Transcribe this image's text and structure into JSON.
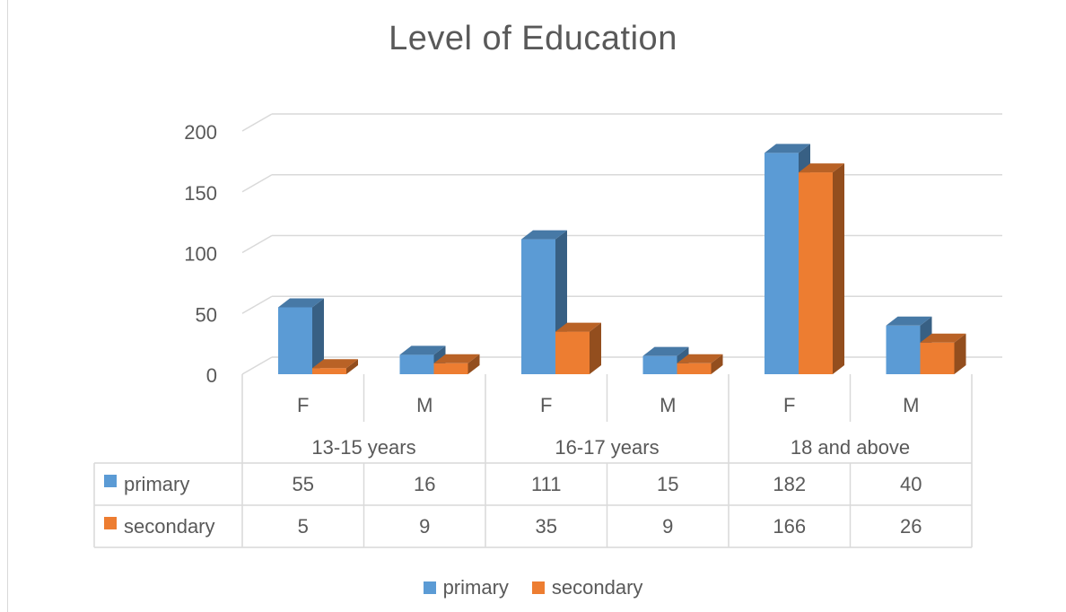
{
  "chart_data": {
    "type": "bar",
    "title": "Level of Education",
    "groups": [
      {
        "label": "13-15 years",
        "categories": [
          "F",
          "M"
        ]
      },
      {
        "label": "16-17 years",
        "categories": [
          "F",
          "M"
        ]
      },
      {
        "label": "18 and above",
        "categories": [
          "F",
          "M"
        ]
      }
    ],
    "categories": [
      "F",
      "M",
      "F",
      "M",
      "F",
      "M"
    ],
    "series": [
      {
        "name": "primary",
        "color": "#5b9bd5",
        "values": [
          55,
          16,
          111,
          15,
          182,
          40
        ]
      },
      {
        "name": "secondary",
        "color": "#ed7d31",
        "values": [
          5,
          9,
          35,
          9,
          166,
          26
        ]
      }
    ],
    "ylim": [
      0,
      200
    ],
    "yticks": [
      0,
      50,
      100,
      150,
      200
    ],
    "grid": true,
    "data_table": true,
    "legend_position": "bottom",
    "style": "3d-clustered-column"
  }
}
